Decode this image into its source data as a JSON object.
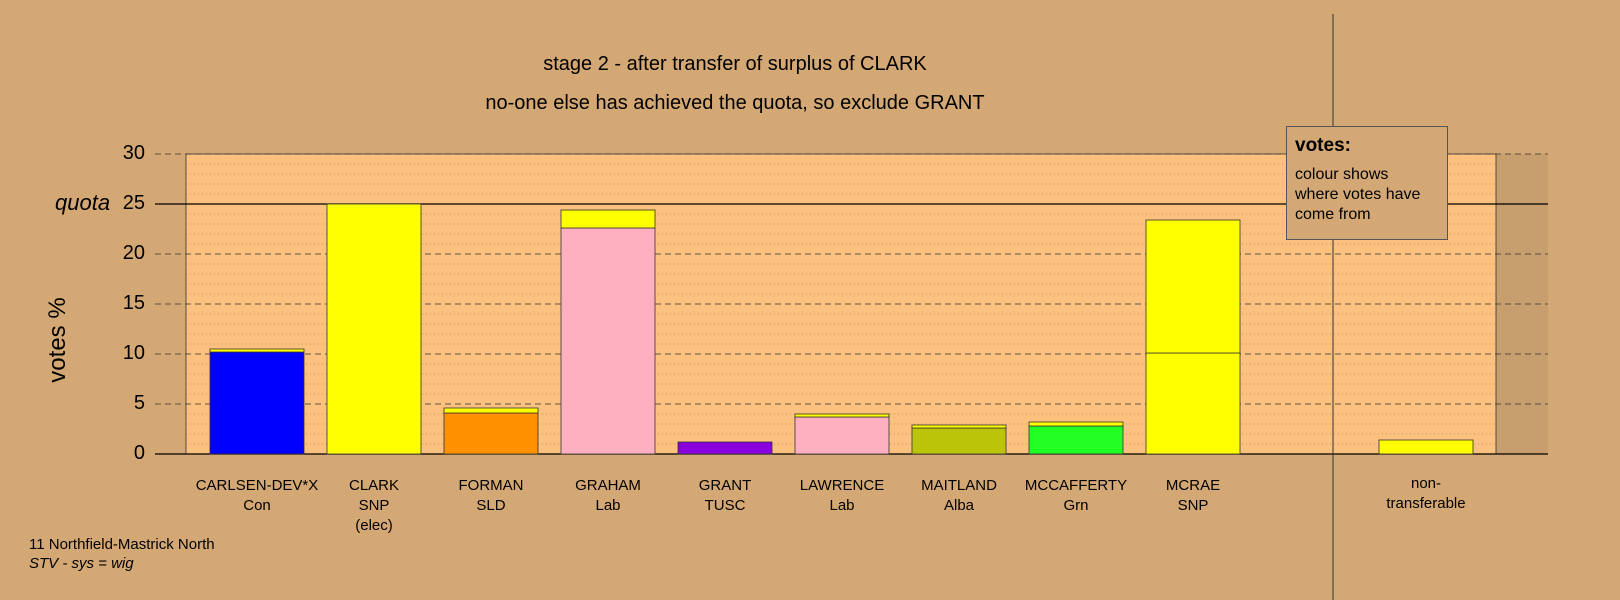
{
  "header": {
    "title": "stage 2 - after transfer of surplus of CLARK",
    "subtitle": "no-one else has achieved the quota, so exclude GRANT"
  },
  "chart_data": {
    "type": "bar",
    "stacked": true,
    "ylabel": "votes %",
    "ylim": [
      0,
      30
    ],
    "yticks": [
      "0",
      "5",
      "10",
      "15",
      "20",
      "25",
      "30"
    ],
    "quota": 25,
    "quota_label": "quota",
    "grid": true,
    "candidates": [
      {
        "name": "CARLSEN-DEV*X",
        "party": "Con",
        "note": ""
      },
      {
        "name": "CLARK",
        "party": "SNP",
        "note": "(elec)"
      },
      {
        "name": "FORMAN",
        "party": "SLD",
        "note": ""
      },
      {
        "name": "GRAHAM",
        "party": "Lab",
        "note": ""
      },
      {
        "name": "GRANT",
        "party": "TUSC",
        "note": ""
      },
      {
        "name": "LAWRENCE",
        "party": "Lab",
        "note": ""
      },
      {
        "name": "MAITLAND",
        "party": "Alba",
        "note": ""
      },
      {
        "name": "MCCAFFERTY",
        "party": "Grn",
        "note": ""
      },
      {
        "name": "MCRAE",
        "party": "SNP",
        "note": ""
      },
      {
        "name": "non-",
        "party": "transferable",
        "note": ""
      }
    ],
    "segments": [
      [
        {
          "value": 10.2,
          "color": "#0000ff"
        },
        {
          "value": 0.3,
          "color": "#ffff00"
        }
      ],
      [
        {
          "value": 25.0,
          "color": "#ffff00"
        }
      ],
      [
        {
          "value": 4.1,
          "color": "#ff9000"
        },
        {
          "value": 0.5,
          "color": "#ffff00"
        }
      ],
      [
        {
          "value": 22.6,
          "color": "#ffb0c0"
        },
        {
          "value": 1.8,
          "color": "#ffff00"
        }
      ],
      [
        {
          "value": 1.2,
          "color": "#8800dd"
        }
      ],
      [
        {
          "value": 3.7,
          "color": "#ffb0c0"
        },
        {
          "value": 0.3,
          "color": "#ffff00"
        }
      ],
      [
        {
          "value": 2.6,
          "color": "#bcc40a"
        },
        {
          "value": 0.3,
          "color": "#ffff00"
        }
      ],
      [
        {
          "value": 2.8,
          "color": "#22ff22"
        },
        {
          "value": 0.4,
          "color": "#ffff00"
        }
      ],
      [
        {
          "value": 10.1,
          "color": "#ffff00"
        },
        {
          "value": 13.3,
          "color": "#ffff00"
        }
      ],
      [
        {
          "value": 1.4,
          "color": "#ffff00"
        }
      ]
    ],
    "colors": {
      "background": "#d4a874",
      "plot_background": "#fcc07f"
    }
  },
  "legend": {
    "heading": "votes:",
    "text": "colour shows where votes have come from"
  },
  "footer": {
    "ward": "11 Northfield-Mastrick North",
    "system": "STV - sys = wig"
  }
}
